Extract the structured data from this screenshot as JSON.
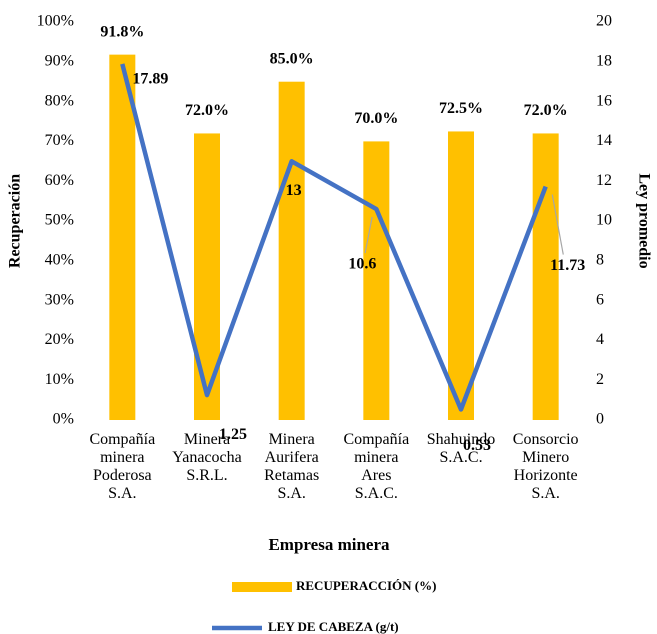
{
  "chart_data": {
    "type": "bar-line",
    "categories": [
      "Compañía\nminera\nPoderosa\nS.A.",
      "Minera\nYanacocha\nS.R.L.",
      "Minera\nAurifera\nRetamas\nS.A.",
      "Compañía\nminera\nAres\nS.A.C.",
      "Shahuindo\nS.A.C.",
      "Consorcio\nMinero\nHorizonte\nS.A."
    ],
    "series": [
      {
        "name": "RECUPERACCIÓN (%)",
        "type": "bar",
        "color": "#ffc000",
        "values": [
          91.8,
          72.0,
          85.0,
          70.0,
          72.5,
          72.0
        ],
        "value_labels": [
          "91.8%",
          "72.0%",
          "85.0%",
          "70.0%",
          "72.5%",
          "72.0%"
        ]
      },
      {
        "name": "LEY DE CABEZA (g/t)",
        "type": "line",
        "axis": "y2",
        "color": "#4472c4",
        "values": [
          17.89,
          1.25,
          13,
          10.6,
          0.53,
          11.73
        ]
      }
    ],
    "xlabel": "Empresa minera",
    "ylabel": "Recuperación",
    "y2label": "Ley promedio",
    "ylim": [
      0,
      100
    ],
    "yticks": [
      {
        "value": 0,
        "label": "0%"
      },
      {
        "value": 10,
        "label": "10%"
      },
      {
        "value": 20,
        "label": "20%"
      },
      {
        "value": 30,
        "label": "30%"
      },
      {
        "value": 40,
        "label": "40%"
      },
      {
        "value": 50,
        "label": "50%"
      },
      {
        "value": 60,
        "label": "60%"
      },
      {
        "value": 70,
        "label": "70%"
      },
      {
        "value": 80,
        "label": "80%"
      },
      {
        "value": 90,
        "label": "90%"
      },
      {
        "value": 100,
        "label": "100%"
      }
    ],
    "y2lim": [
      0,
      20
    ],
    "y2ticks": [
      0,
      2,
      4,
      6,
      8,
      10,
      12,
      14,
      16,
      18,
      20
    ],
    "legend": "bottom"
  }
}
